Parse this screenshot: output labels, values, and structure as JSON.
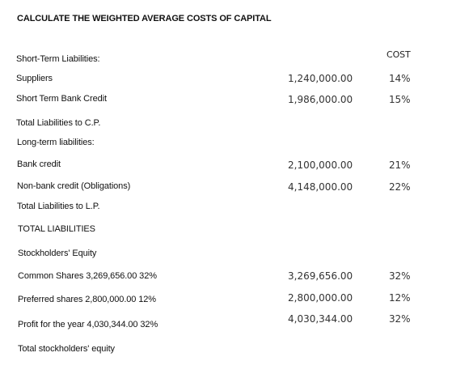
{
  "title": "CALCULATE THE WEIGHTED AVERAGE COSTS OF CAPITAL",
  "cost_header": "COST",
  "short_term": {
    "heading": "Short-Term Liabilities:",
    "suppliers": {
      "label": "Suppliers",
      "amount": "1,240,000.00",
      "cost": "14%"
    },
    "bank_credit": {
      "label": "Short Term Bank Credit",
      "amount": "1,986,000.00",
      "cost": "15%"
    },
    "total_label": "Total Liabilities to C.P."
  },
  "long_term": {
    "heading": "Long-term liabilities:",
    "bank_credit": {
      "label": "Bank credit",
      "amount": "2,100,000.00",
      "cost": "21%"
    },
    "non_bank_credit": {
      "label": "Non-bank credit (Obligations)",
      "amount": "4,148,000.00",
      "cost": "22%"
    },
    "total_label": "Total Liabilities to L.P."
  },
  "total_liabilities_label": "TOTAL LIABILITIES",
  "equity": {
    "heading": "Stockholders' Equity",
    "common": {
      "label": "Common Shares 3,269,656.00 32%",
      "amount": "3,269,656.00",
      "cost": "32%"
    },
    "preferred": {
      "label": "Preferred shares 2,800,000.00 12%",
      "amount": "2,800,000.00",
      "cost": "12%"
    },
    "profit": {
      "label": "Profit for the year 4,030,344.00 32%",
      "amount": "4,030,344.00",
      "cost": "32%"
    },
    "total_label": "Total stockholders' equity"
  }
}
